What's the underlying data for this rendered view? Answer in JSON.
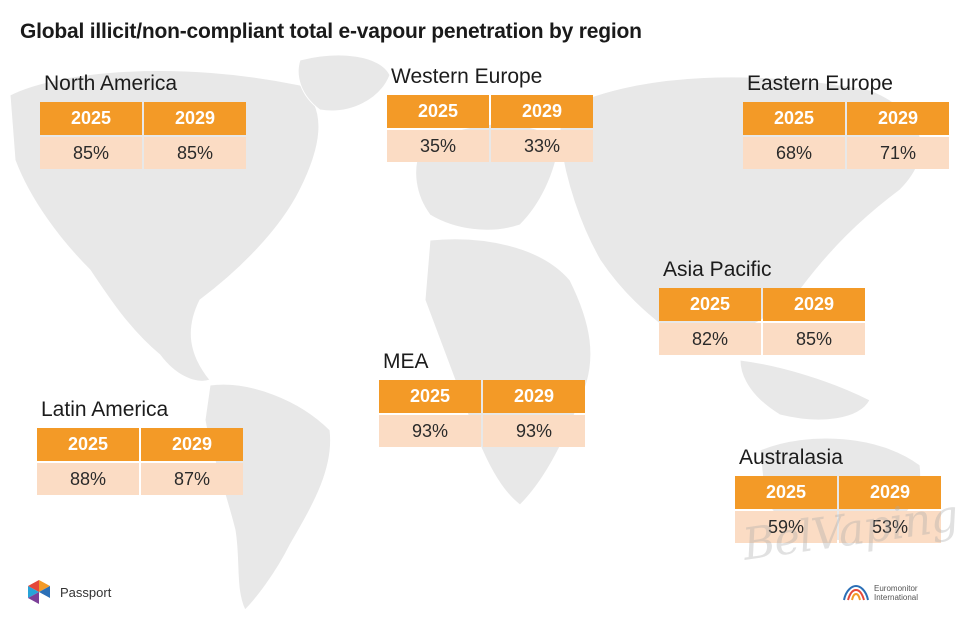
{
  "chart_data": {
    "type": "table",
    "title": "Global illicit/non-compliant total e-vapour penetration by region",
    "columns": [
      "2025",
      "2029"
    ],
    "regions": [
      {
        "name": "North America",
        "values": [
          "85%",
          "85%"
        ]
      },
      {
        "name": "Western Europe",
        "values": [
          "35%",
          "33%"
        ]
      },
      {
        "name": "Eastern Europe",
        "values": [
          "68%",
          "71%"
        ]
      },
      {
        "name": "Asia Pacific",
        "values": [
          "82%",
          "85%"
        ]
      },
      {
        "name": "MEA",
        "values": [
          "93%",
          "93%"
        ]
      },
      {
        "name": "Latin America",
        "values": [
          "88%",
          "87%"
        ]
      },
      {
        "name": "Australasia",
        "values": [
          "59%",
          "53%"
        ]
      }
    ]
  },
  "branding": {
    "left_label": "Passport",
    "left_icon": "passport-logo-icon",
    "right_label": "Euromonitor International",
    "right_icon": "euromonitor-logo-icon",
    "watermark": "BelVaping"
  },
  "colors": {
    "header": "#f39a27",
    "cell": "#fbdcc4",
    "map": "#e7e7e7"
  }
}
